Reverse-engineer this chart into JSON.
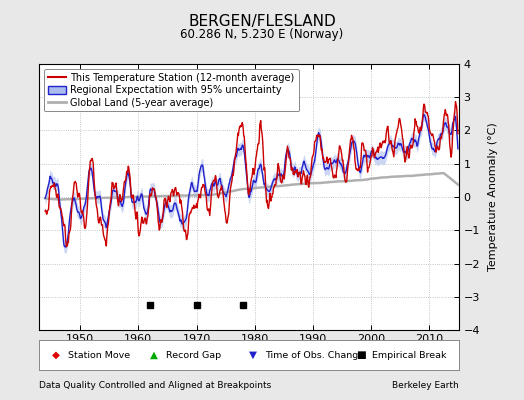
{
  "title": "BERGEN/FLESLAND",
  "subtitle": "60.286 N, 5.230 E (Norway)",
  "ylabel": "Temperature Anomaly (°C)",
  "footer_left": "Data Quality Controlled and Aligned at Breakpoints",
  "footer_right": "Berkeley Earth",
  "xlim": [
    1943,
    2015
  ],
  "ylim": [
    -4,
    4
  ],
  "yticks": [
    -4,
    -3,
    -2,
    -1,
    0,
    1,
    2,
    3,
    4
  ],
  "xticks": [
    1950,
    1960,
    1970,
    1980,
    1990,
    2000,
    2010
  ],
  "bg_color": "#e8e8e8",
  "plot_bg_color": "#ffffff",
  "empirical_breaks": [
    1962,
    1970,
    1978
  ],
  "station_color": "#cc0000",
  "regional_color": "#2222cc",
  "regional_fill_color": "#aabbee",
  "global_color": "#b0b0b0",
  "title_fontsize": 11,
  "subtitle_fontsize": 8.5,
  "legend_fontsize": 7,
  "tick_fontsize": 8
}
